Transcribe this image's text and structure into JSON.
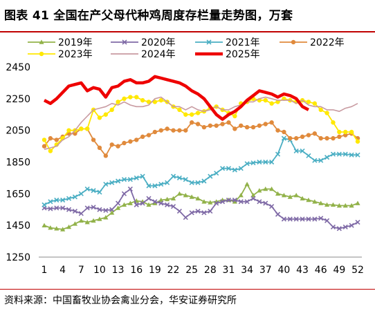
{
  "title": "图表 41 全国在产父母代种鸡周度存栏量走势图，万套",
  "source": "资料来源：中国畜牧业协会禽业分会，华安证券研究所",
  "chart_data": {
    "type": "line",
    "title": "图表 41 全国在产父母代种鸡周度存栏量走势图，万套",
    "xlabel": "",
    "ylabel": "",
    "x": [
      1,
      2,
      3,
      4,
      5,
      6,
      7,
      8,
      9,
      10,
      11,
      12,
      13,
      14,
      15,
      16,
      17,
      18,
      19,
      20,
      21,
      22,
      23,
      24,
      25,
      26,
      27,
      28,
      29,
      30,
      31,
      32,
      33,
      34,
      35,
      36,
      37,
      38,
      39,
      40,
      41,
      42,
      43,
      44,
      45,
      46,
      47,
      48,
      49,
      50,
      51,
      52
    ],
    "x_ticks": [
      1,
      4,
      7,
      10,
      13,
      16,
      19,
      22,
      25,
      28,
      31,
      34,
      37,
      40,
      43,
      46,
      49,
      52
    ],
    "ylim": [
      1250,
      2450
    ],
    "y_ticks": [
      1250,
      1450,
      1650,
      1850,
      2050,
      2250,
      2450
    ],
    "grid": false,
    "legend_position": "top",
    "series": [
      {
        "name": "2019年",
        "color": "#92b24a",
        "marker": "triangle",
        "values": [
          1450,
          1435,
          1430,
          1425,
          1440,
          1460,
          1480,
          1470,
          1480,
          1490,
          1500,
          1530,
          1560,
          1580,
          1590,
          1605,
          1600,
          1580,
          1590,
          1610,
          1615,
          1620,
          1650,
          1640,
          1630,
          1620,
          1600,
          1595,
          1600,
          1610,
          1610,
          1600,
          1640,
          1710,
          1640,
          1670,
          1680,
          1680,
          1650,
          1640,
          1630,
          1640,
          1620,
          1610,
          1600,
          1590,
          1580,
          1580,
          1575,
          1575,
          1575,
          1590
        ]
      },
      {
        "name": "2020年",
        "color": "#7f6aa6",
        "marker": "x",
        "values": [
          1560,
          1555,
          1560,
          1560,
          1550,
          1540,
          1525,
          1560,
          1565,
          1550,
          1545,
          1550,
          1590,
          1650,
          1680,
          1580,
          1590,
          1620,
          1600,
          1590,
          1580,
          1570,
          1540,
          1500,
          1530,
          1540,
          1530,
          1540,
          1590,
          1600,
          1610,
          1610,
          1600,
          1600,
          1620,
          1600,
          1590,
          1570,
          1520,
          1490,
          1490,
          1490,
          1490,
          1490,
          1490,
          1495,
          1480,
          1440,
          1430,
          1440,
          1450,
          1470
        ]
      },
      {
        "name": "2021年",
        "color": "#4aaec3",
        "marker": "x",
        "values": [
          1580,
          1600,
          1610,
          1610,
          1620,
          1630,
          1650,
          1680,
          1670,
          1660,
          1710,
          1720,
          1730,
          1740,
          1740,
          1750,
          1760,
          1700,
          1700,
          1710,
          1720,
          1760,
          1750,
          1740,
          1720,
          1720,
          1730,
          1760,
          1780,
          1810,
          1810,
          1800,
          1810,
          1840,
          1845,
          1850,
          1850,
          1850,
          1900,
          2000,
          1990,
          1920,
          1920,
          1890,
          1860,
          1860,
          1880,
          1900,
          1900,
          1900,
          1895,
          1895
        ]
      },
      {
        "name": "2022年",
        "color": "#e08a3c",
        "marker": "circle",
        "values": [
          1950,
          2000,
          1990,
          2010,
          2030,
          2030,
          2060,
          2060,
          1990,
          1940,
          1890,
          1960,
          1950,
          1970,
          1980,
          1990,
          2010,
          2020,
          2040,
          2050,
          2060,
          2050,
          2050,
          2050,
          2100,
          2090,
          2070,
          2080,
          2080,
          2090,
          2100,
          2060,
          2080,
          2070,
          2070,
          2080,
          2090,
          2100,
          2050,
          2040,
          2000,
          2000,
          2010,
          2020,
          2030,
          2000,
          2000,
          2000,
          2010,
          2020,
          2030,
          2000
        ]
      },
      {
        "name": "2023年",
        "color": "#ffe800",
        "marker": "circle",
        "values": [
          1990,
          1920,
          1960,
          2000,
          2050,
          2050,
          2060,
          2060,
          2180,
          2130,
          2150,
          2180,
          2230,
          2250,
          2260,
          2260,
          2240,
          2230,
          2230,
          2240,
          2230,
          2200,
          2180,
          2150,
          2150,
          2160,
          2170,
          2190,
          2200,
          2180,
          2160,
          2140,
          2220,
          2230,
          2250,
          2240,
          2240,
          2220,
          2230,
          2250,
          2240,
          2230,
          2240,
          2230,
          2220,
          2180,
          2160,
          2100,
          2040,
          2040,
          2040,
          1980
        ]
      },
      {
        "name": "2024年",
        "color": "#c89aa0",
        "marker": "none",
        "values": [
          1930,
          1940,
          1950,
          1990,
          2010,
          2050,
          2100,
          2140,
          2180,
          2190,
          2200,
          2220,
          2210,
          2230,
          2210,
          2200,
          2200,
          2210,
          2250,
          2260,
          2230,
          2200,
          2200,
          2180,
          2200,
          2180,
          2170,
          2180,
          2200,
          2180,
          2180,
          2200,
          2210,
          2230,
          2230,
          2250,
          2260,
          2250,
          2240,
          2240,
          2240,
          2220,
          2240,
          2210,
          2200,
          2200,
          2180,
          2180,
          2170,
          2190,
          2200,
          2220
        ]
      },
      {
        "name": "2025年",
        "color": "#ee0000",
        "marker": "none",
        "values": [
          2240,
          2220,
          2250,
          2290,
          2330,
          2340,
          2350,
          2300,
          2320,
          2310,
          2260,
          2320,
          2330,
          2360,
          2370,
          2350,
          2350,
          2360,
          2390,
          2380,
          2370,
          2360,
          2350,
          2330,
          2300,
          2280,
          2250,
          2200,
          2150,
          2120,
          2150,
          2170,
          2200,
          2240,
          2270,
          2300,
          2290,
          2280,
          2260,
          2280,
          2270,
          2250,
          2200,
          2180,
          null,
          null,
          null,
          null,
          null,
          null,
          null,
          null
        ]
      }
    ]
  }
}
